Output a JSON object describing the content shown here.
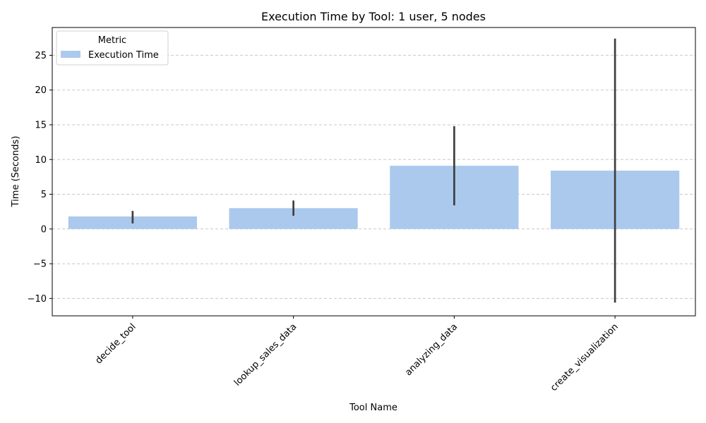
{
  "chart_data": {
    "type": "bar",
    "title": "Execution Time by Tool: 1 user, 5 nodes",
    "xlabel": "Tool Name",
    "ylabel": "Time (Seconds)",
    "categories": [
      "decide_tool",
      "lookup_sales_data",
      "analyzing_data",
      "create_visualization"
    ],
    "series": [
      {
        "name": "Execution Time",
        "values": [
          1.8,
          3.0,
          9.1,
          8.4
        ],
        "error_low": [
          0.8,
          1.9,
          3.4,
          -10.6
        ],
        "error_high": [
          2.6,
          4.1,
          14.8,
          27.4
        ],
        "color": "#abc9ed"
      }
    ],
    "ylim": [
      -12.5,
      29
    ],
    "yticks": [
      -10,
      -5,
      0,
      5,
      10,
      15,
      20,
      25
    ],
    "ytick_labels": [
      "−10",
      "−5",
      "0",
      "5",
      "10",
      "15",
      "20",
      "25"
    ],
    "grid": "y-dashed",
    "legend": {
      "title": "Metric",
      "placement": "upper-left"
    },
    "colors": {
      "bar": "#abc9ed",
      "errorbar": "#3f3f3f",
      "grid": "#c8c8c8"
    }
  }
}
